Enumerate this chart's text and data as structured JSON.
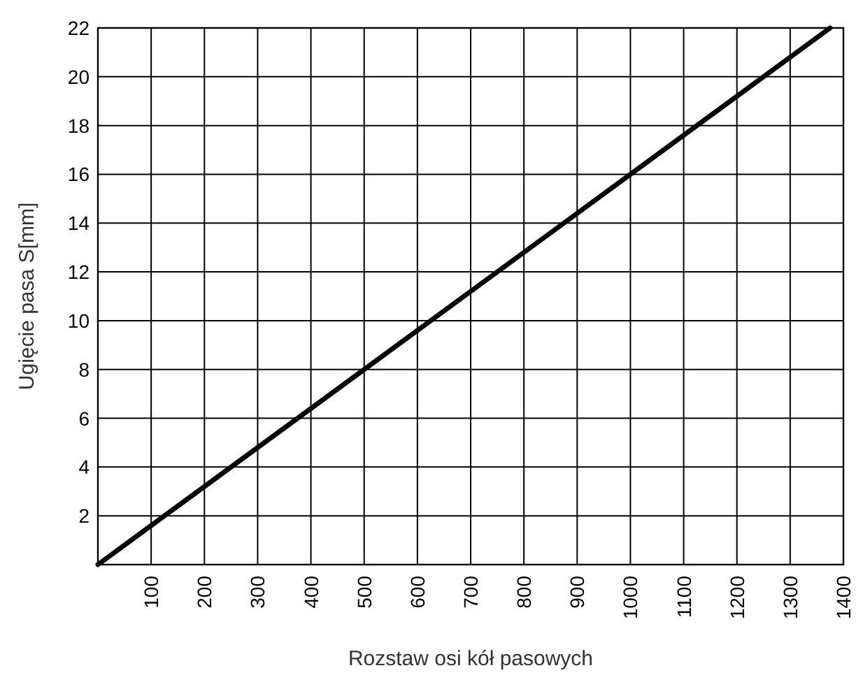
{
  "chart_data": {
    "type": "line",
    "xlabel": "Rozstaw osi kół pasowych",
    "ylabel": "Ugięcie pasa S[mm]",
    "x": [
      0,
      1375
    ],
    "series": [
      {
        "color": "#000000",
        "values": [
          0,
          22
        ]
      }
    ],
    "xlim": [
      0,
      1400
    ],
    "ylim": [
      0,
      22
    ],
    "xticks": [
      100,
      200,
      300,
      400,
      500,
      600,
      700,
      800,
      900,
      1000,
      1100,
      1200,
      1300,
      1400
    ],
    "yticks": [
      2,
      4,
      6,
      8,
      10,
      12,
      14,
      16,
      18,
      20,
      22
    ],
    "grid": true,
    "marker": "none",
    "line_style": "solid"
  }
}
